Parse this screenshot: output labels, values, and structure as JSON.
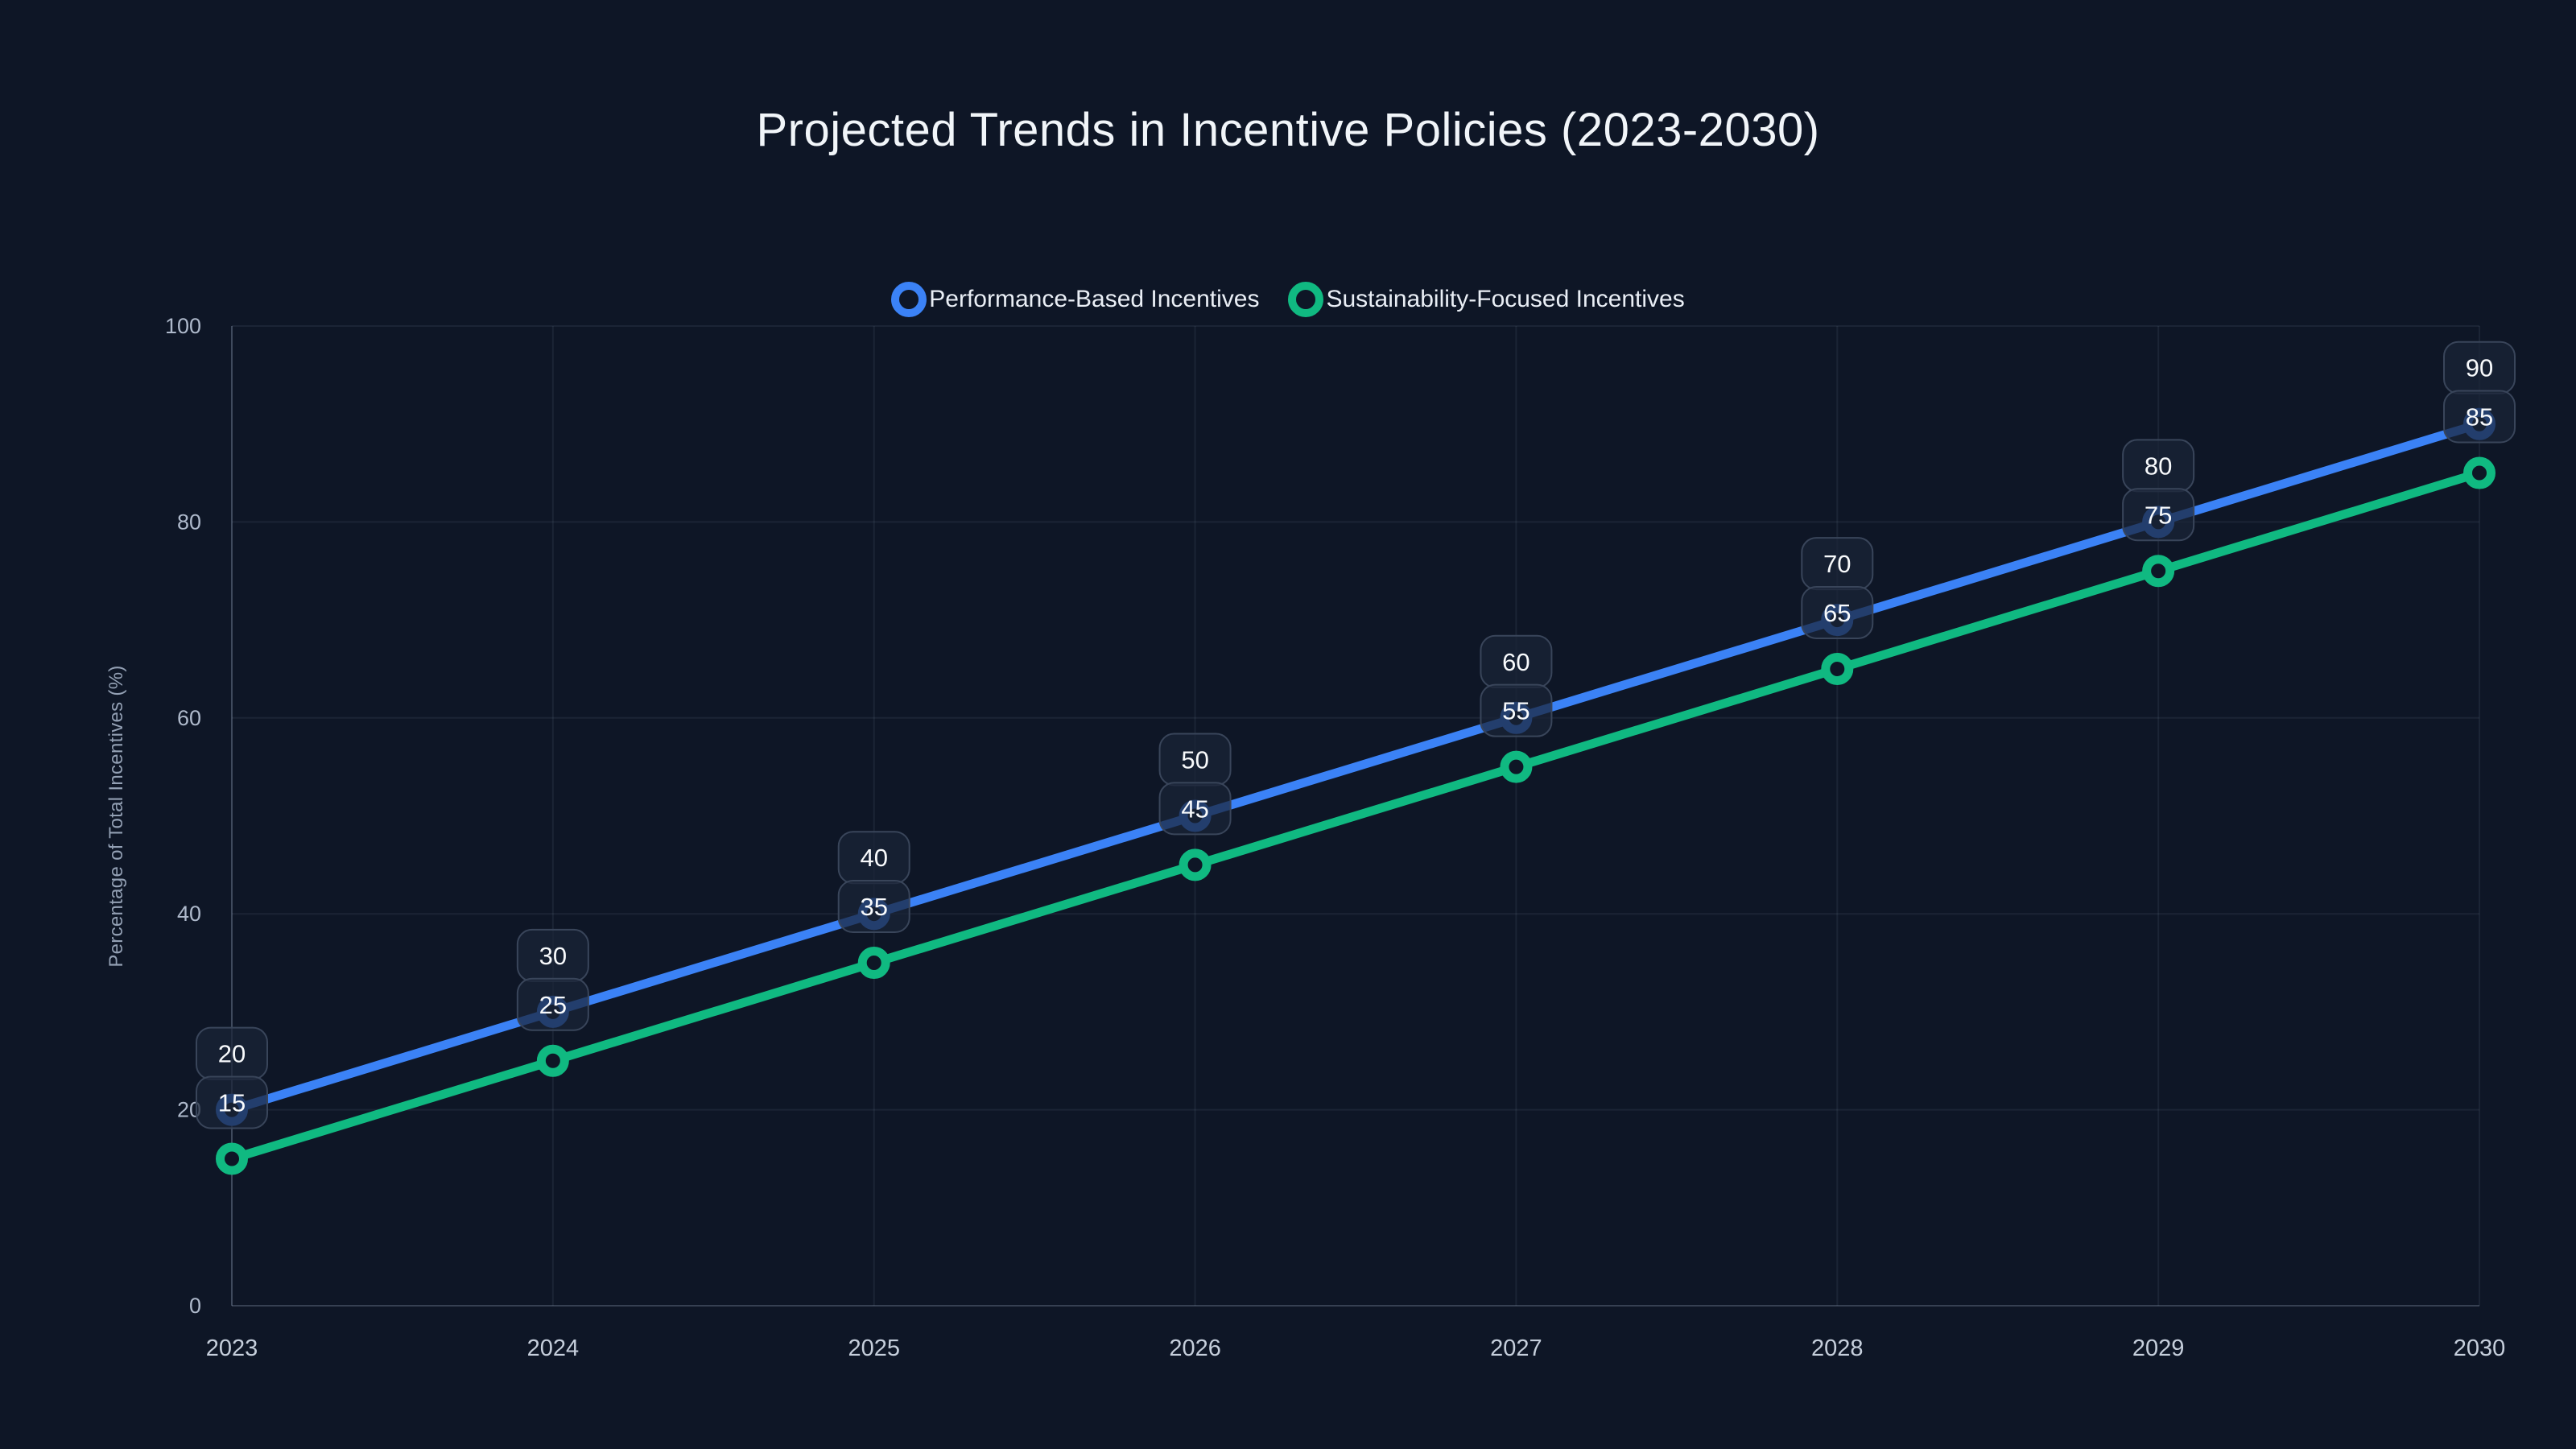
{
  "chart_data": {
    "type": "line",
    "title": "Projected Trends in Incentive Policies (2023-2030)",
    "categories": [
      "2023",
      "2024",
      "2025",
      "2026",
      "2027",
      "2028",
      "2029",
      "2030"
    ],
    "series": [
      {
        "name": "Performance-Based Incentives",
        "color": "#3b82f6",
        "values": [
          20,
          30,
          40,
          50,
          60,
          70,
          80,
          90
        ]
      },
      {
        "name": "Sustainability-Focused Incentives",
        "color": "#10b981",
        "values": [
          15,
          25,
          35,
          45,
          55,
          65,
          75,
          85
        ]
      }
    ],
    "xlabel": "",
    "ylabel": "Percentage of Total Incentives (%)",
    "ylim": [
      0,
      100
    ],
    "yticks": [
      0,
      20,
      40,
      60,
      80,
      100
    ],
    "grid": true,
    "legend_position": "top",
    "point_labels": true,
    "marker_style": "open-ring"
  },
  "colors": {
    "background": "#0e1626",
    "badge_fill": "rgba(26,36,56,0.72)",
    "badge_border": "#39455a",
    "grid_line": "rgba(148,163,184,0.10)",
    "axis_line": "rgba(148,163,184,0.30)"
  }
}
